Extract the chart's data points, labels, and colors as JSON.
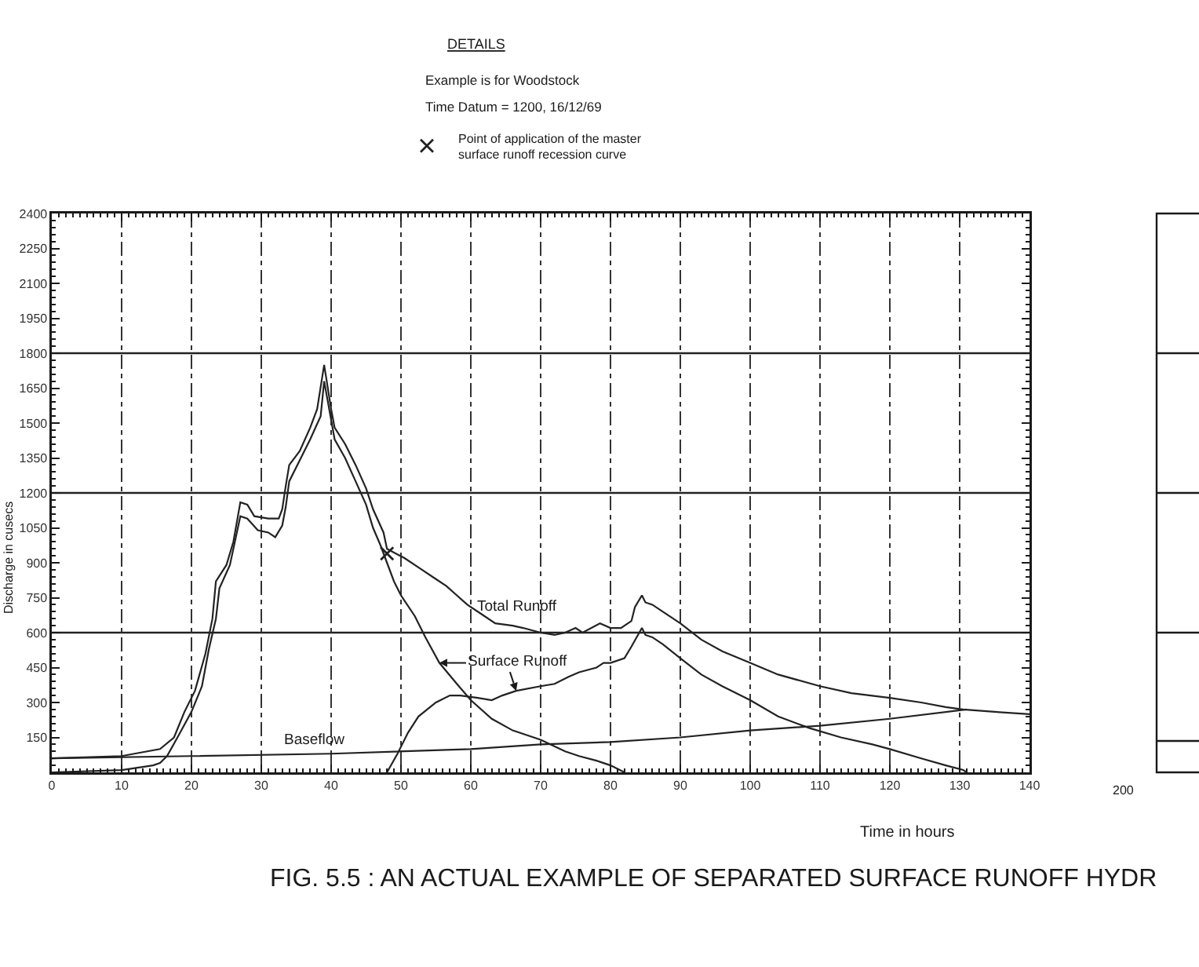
{
  "chart_data": {
    "type": "line",
    "title": "FIG. 5.5 : AN ACTUAL EXAMPLE OF SEPARATED SURFACE RUNOFF HYDR",
    "xlabel": "Time in hours",
    "ylabel": "Discharge in cusecs",
    "annotations": [
      "DETAILS",
      "Example is for Woodstock",
      "Time Datum = 1200, 16/12/69",
      "200"
    ],
    "xlim": [
      0,
      140
    ],
    "xticks": [
      0,
      10,
      20,
      30,
      40,
      50,
      60,
      70,
      80,
      90,
      100,
      110,
      120,
      130,
      140
    ],
    "ylim": [
      0,
      2400
    ],
    "yticks": [
      150,
      300,
      450,
      600,
      750,
      900,
      1050,
      1200,
      1350,
      1500,
      1650,
      1800,
      1950,
      2100,
      2250,
      2400
    ],
    "grid": "x",
    "legend": "top",
    "ref_lines": [
      {
        "axis": "y",
        "value": 600,
        "color": "#222222"
      },
      {
        "axis": "y",
        "value": 1200,
        "color": "#222222"
      },
      {
        "axis": "y",
        "value": 1800,
        "color": "#222222"
      }
    ],
    "series": [
      {
        "name": "Total Runoff",
        "color": "#222222",
        "x": [
          0,
          10,
          15.5,
          17.5,
          19,
          20.5,
          22,
          23,
          23.5,
          25,
          26,
          27,
          28,
          29,
          31,
          32.5,
          33,
          33.5,
          34,
          35.5,
          37,
          38,
          39,
          40,
          40.5,
          42,
          43.5,
          45,
          46,
          47.5,
          48,
          50.5,
          52.5,
          55,
          56.5,
          58,
          59.5,
          61.5,
          63.5,
          66,
          67.5,
          70,
          72,
          73.5,
          75,
          76,
          78.5,
          80,
          81.5,
          83,
          83.5,
          84.5,
          85,
          86,
          87.5,
          90,
          93,
          96,
          100,
          104,
          110,
          114.5,
          120,
          124.5,
          128,
          130.5,
          135,
          140
        ],
        "values": [
          60,
          70,
          100,
          150,
          260,
          350,
          510,
          660,
          820,
          890,
          990,
          1160,
          1150,
          1100,
          1090,
          1090,
          1130,
          1230,
          1320,
          1380,
          1480,
          1560,
          1750,
          1560,
          1480,
          1410,
          1320,
          1220,
          1130,
          1030,
          960,
          920,
          880,
          830,
          800,
          760,
          720,
          680,
          640,
          630,
          620,
          600,
          590,
          600,
          620,
          600,
          640,
          620,
          620,
          650,
          710,
          760,
          730,
          720,
          690,
          640,
          570,
          520,
          470,
          420,
          370,
          340,
          320,
          300,
          280,
          270,
          260,
          250
        ]
      },
      {
        "name": "Surface Runoff",
        "color": "#222222",
        "x": [
          0,
          10,
          14.5,
          15.5,
          16.5,
          18,
          20,
          21.5,
          22.5,
          23.5,
          24,
          25.5,
          27,
          28,
          29.5,
          31,
          32,
          33,
          33.5,
          34,
          35.5,
          37,
          38.5,
          39,
          40.5,
          42,
          43.5,
          45,
          46,
          47,
          49,
          50,
          52,
          53.5,
          55.5,
          58,
          60,
          63,
          66,
          70,
          73.5,
          75.5,
          78,
          80,
          82,
          null,
          48,
          49.5,
          51,
          52.5,
          55,
          57,
          58.5,
          61,
          63,
          64.5,
          66.5,
          70,
          72,
          74,
          75.5,
          78,
          79,
          80,
          82,
          83,
          84.5,
          85,
          86,
          87.5,
          90,
          93,
          96,
          100,
          104,
          108.5,
          113,
          117.5,
          120,
          124.5,
          128,
          130.5,
          131
        ],
        "values": [
          0,
          10,
          30,
          40,
          70,
          150,
          260,
          370,
          530,
          660,
          790,
          890,
          1100,
          1090,
          1040,
          1030,
          1010,
          1060,
          1140,
          1250,
          1340,
          1430,
          1530,
          1680,
          1430,
          1350,
          1250,
          1150,
          1050,
          980,
          820,
          760,
          670,
          580,
          470,
          380,
          310,
          230,
          180,
          140,
          90,
          70,
          50,
          30,
          0,
          null,
          0,
          80,
          170,
          240,
          300,
          330,
          330,
          320,
          310,
          330,
          350,
          370,
          380,
          410,
          430,
          450,
          470,
          470,
          490,
          540,
          620,
          590,
          580,
          550,
          490,
          420,
          370,
          310,
          240,
          190,
          150,
          120,
          100,
          60,
          30,
          10,
          0
        ]
      },
      {
        "name": "Baseflow",
        "color": "#222222",
        "x": [
          0,
          20,
          40,
          60,
          70,
          80,
          90,
          100,
          110,
          120,
          131
        ],
        "values": [
          60,
          70,
          80,
          100,
          120,
          130,
          150,
          180,
          200,
          230,
          270
        ]
      },
      {
        "name": "Point of application of the master surface runoff recession curve",
        "type": "scatter",
        "marker": "cross",
        "color": "#222222",
        "x": [
          48
        ],
        "values": [
          940
        ]
      }
    ]
  }
}
